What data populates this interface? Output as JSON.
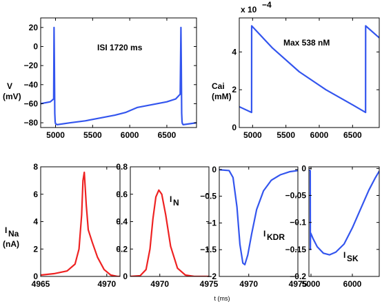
{
  "chart_data": [
    {
      "id": "voltage",
      "type": "line",
      "ylabel": [
        "V",
        "(mV)"
      ],
      "annotation": "ISI 1720 ms",
      "xlim": [
        4800,
        6900
      ],
      "ylim": [
        -85,
        30
      ],
      "xticks": [
        5000,
        5500,
        6000,
        6500
      ],
      "yticks": [
        20,
        0,
        -20,
        -40,
        -60,
        -80
      ],
      "color": "#3355ee",
      "series": [
        {
          "x": [
            4800,
            4930,
            4975,
            4980,
            4985,
            4990,
            4995,
            5000,
            5020,
            5200,
            5400,
            5600,
            5800,
            5950,
            6100,
            6300,
            6500,
            6620,
            6680,
            6690,
            6695,
            6700,
            6705,
            6710,
            6720,
            6900
          ],
          "y": [
            -60,
            -58,
            -55,
            20,
            -20,
            -70,
            -79,
            -81,
            -82,
            -80,
            -78,
            -75,
            -72,
            -69,
            -64,
            -61,
            -58,
            -55,
            -50,
            20,
            -20,
            -70,
            -79,
            -81,
            -82,
            -80
          ]
        }
      ]
    },
    {
      "id": "cai",
      "type": "line",
      "ylabel": [
        "Cai",
        "(mM)"
      ],
      "annotation": "Max 538 nM",
      "scale_label": "x 10",
      "scale_exp": "−4",
      "xlim": [
        4800,
        6900
      ],
      "ylim": [
        0,
        5.8
      ],
      "xticks": [
        5000,
        5500,
        6000,
        6500
      ],
      "yticks": [
        4,
        2,
        0
      ],
      "color": "#3355ee",
      "series": [
        {
          "x": [
            4800,
            4985,
            4986,
            5300,
            5700,
            6100,
            6500,
            6695,
            6696,
            6900
          ],
          "y": [
            1.1,
            0.8,
            5.38,
            4.2,
            2.95,
            2.0,
            1.2,
            0.8,
            5.38,
            4.75
          ]
        }
      ]
    },
    {
      "id": "ina",
      "type": "line",
      "ylabel": [
        "I",
        "Na",
        "(nA)"
      ],
      "xlim": [
        4965,
        4971
      ],
      "ylim": [
        0,
        8
      ],
      "xticks": [
        4965,
        4970
      ],
      "yticks": [
        8,
        6,
        4,
        2,
        0
      ],
      "color": "#ee2222",
      "series": [
        {
          "x": [
            4965,
            4966,
            4967,
            4967.6,
            4967.9,
            4968.1,
            4968.2,
            4968.3,
            4968.45,
            4968.6,
            4968.9,
            4969.3,
            4969.8,
            4970.3,
            4970.8,
            4971
          ],
          "y": [
            0.1,
            0.2,
            0.4,
            0.9,
            2.0,
            4.5,
            7.0,
            7.6,
            5.2,
            3.4,
            2.5,
            1.4,
            0.5,
            0.1,
            0.0,
            0.0
          ]
        }
      ]
    },
    {
      "id": "in",
      "type": "line",
      "annotation": [
        "I",
        "N"
      ],
      "xlim": [
        4967,
        4975
      ],
      "ylim": [
        0,
        0.8
      ],
      "xticks": [
        4970,
        4975
      ],
      "yticks": [
        0.8,
        0.6,
        0.4,
        0.2,
        0
      ],
      "color": "#ee2222",
      "series": [
        {
          "x": [
            4967,
            4968,
            4968.6,
            4969,
            4969.3,
            4969.6,
            4969.9,
            4970.2,
            4970.6,
            4971.1,
            4971.8,
            4972.6,
            4973.5,
            4975
          ],
          "y": [
            0,
            0.005,
            0.05,
            0.2,
            0.42,
            0.58,
            0.63,
            0.6,
            0.45,
            0.22,
            0.06,
            0.01,
            0,
            0
          ]
        }
      ]
    },
    {
      "id": "ikdr",
      "type": "line",
      "annotation": [
        "I",
        "KDR"
      ],
      "xlim": [
        4967,
        4975
      ],
      "ylim": [
        -2,
        0.05
      ],
      "xticks": [
        4970,
        4975
      ],
      "yticks": [
        0,
        -0.5,
        -1,
        -1.5,
        -2
      ],
      "color": "#3355ee",
      "series": [
        {
          "x": [
            4967,
            4968,
            4968.4,
            4968.8,
            4969.1,
            4969.4,
            4969.6,
            4969.9,
            4970.3,
            4970.8,
            4971.5,
            4972.3,
            4973.2,
            4974.2,
            4975
          ],
          "y": [
            -0.005,
            -0.02,
            -0.15,
            -0.7,
            -1.4,
            -1.75,
            -1.78,
            -1.6,
            -1.2,
            -0.75,
            -0.4,
            -0.2,
            -0.1,
            -0.04,
            -0.02
          ]
        }
      ]
    },
    {
      "id": "isk",
      "type": "line",
      "annotation": [
        "I",
        "SK"
      ],
      "xlim": [
        4950,
        6650
      ],
      "ylim": [
        -0.2,
        0.003
      ],
      "xticks": [
        5000,
        6000
      ],
      "yticks": [
        0,
        -0.05,
        -0.1,
        -0.15,
        -0.2
      ],
      "color": "#3355ee",
      "series": [
        {
          "x": [
            4950,
            4982,
            4985,
            4988,
            4995,
            5050,
            5150,
            5300,
            5450,
            5600,
            5800,
            6000,
            6200,
            6400,
            6550,
            6650
          ],
          "y": [
            -0.003,
            -0.004,
            -0.15,
            -0.12,
            -0.12,
            -0.13,
            -0.145,
            -0.157,
            -0.16,
            -0.155,
            -0.14,
            -0.11,
            -0.075,
            -0.04,
            -0.018,
            -0.005
          ]
        }
      ]
    }
  ],
  "xlabel": "t (ms)"
}
